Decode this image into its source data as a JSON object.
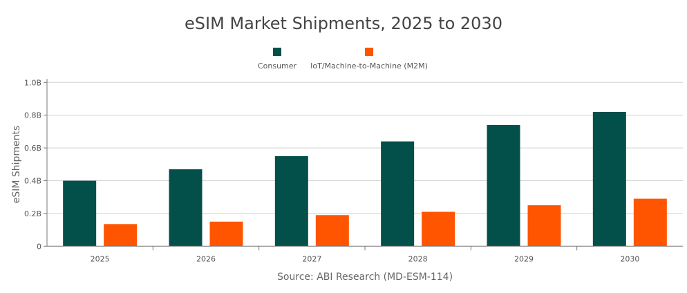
{
  "chart_data": {
    "type": "bar",
    "title": "eSIM Market Shipments, 2025 to 2030",
    "ylabel": "eSIM Shipments",
    "xlabel": "Source: ABI Research (MD-ESM-114)",
    "categories": [
      "2025",
      "2026",
      "2027",
      "2028",
      "2029",
      "2030"
    ],
    "ylim": [
      0,
      1.0
    ],
    "yticks": [
      0,
      0.2,
      0.4,
      0.6,
      0.8,
      1.0
    ],
    "ytick_labels": [
      "0",
      "0.2B",
      "0.4B",
      "0.6B",
      "0.8B",
      "1.0B"
    ],
    "grid": true,
    "legend_position": "top-center",
    "series": [
      {
        "name": "Consumer",
        "color": "#03504A",
        "values": [
          0.4,
          0.47,
          0.55,
          0.64,
          0.74,
          0.82
        ]
      },
      {
        "name": "IoT/Machine-to-Machine (M2M)",
        "color": "#FF5500",
        "values": [
          0.135,
          0.15,
          0.19,
          0.21,
          0.25,
          0.29
        ]
      }
    ]
  }
}
